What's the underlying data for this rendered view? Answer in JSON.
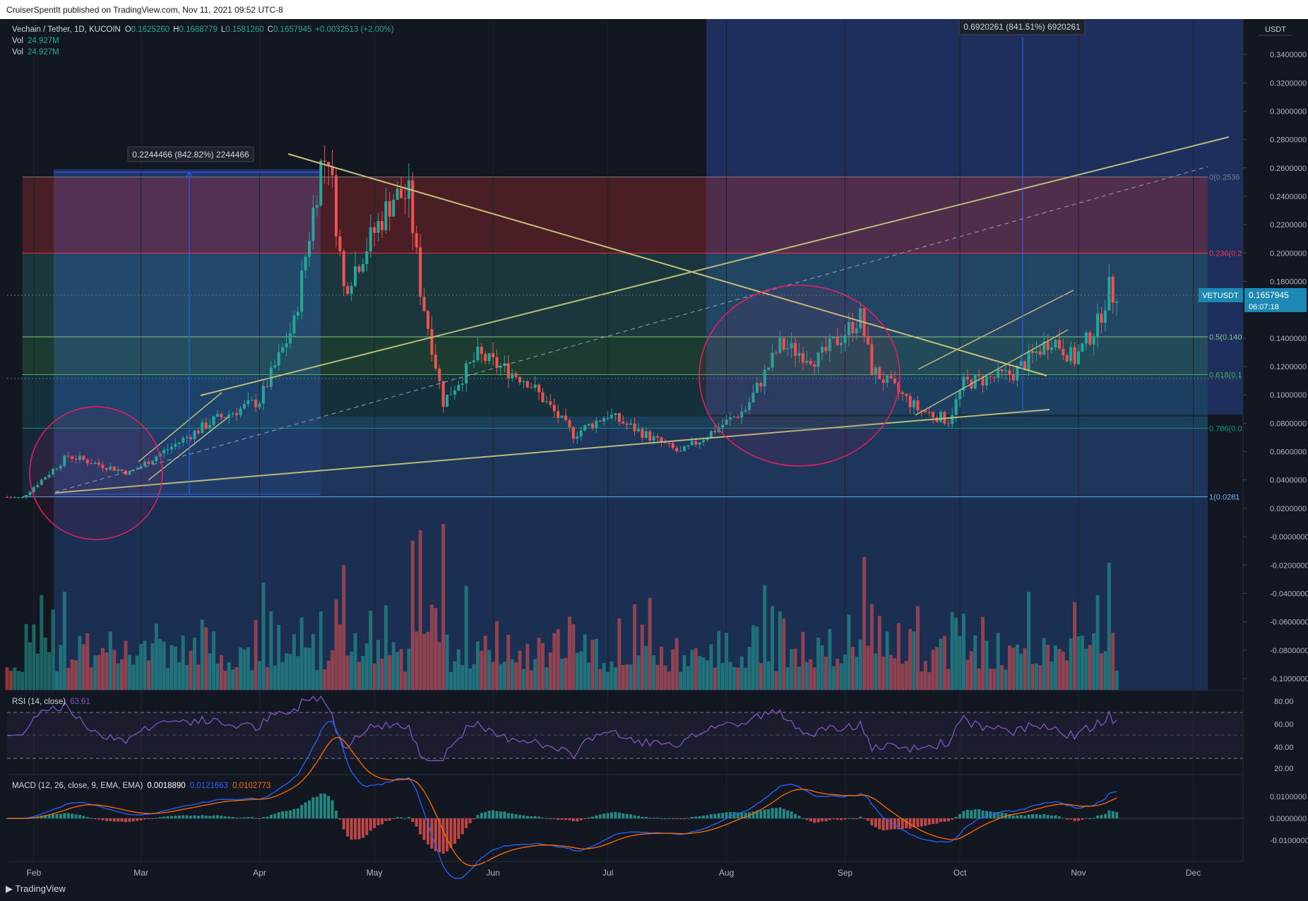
{
  "header": {
    "published_text": "CruiserSpentIt published on TradingView.com, Nov 11, 2021 09:52 UTC-8",
    "brand": "TradingView"
  },
  "legend": {
    "symbol": "Vechain / Tether, 1D, KUCOIN",
    "o_label": "O",
    "o_value": "0.1625260",
    "h_label": "H",
    "h_value": "0.1688779",
    "l_label": "L",
    "l_value": "0.1581260",
    "c_label": "C",
    "c_value": "0.1657945",
    "change": "+0.0032513 (+2.00%)",
    "vol_label": "Vol",
    "vol_value": "24.927M",
    "vol2_label": "Vol",
    "vol2_value": "24.927M"
  },
  "price_axis": {
    "currency": "USDT",
    "ticks": [
      "0.3400000",
      "0.3200000",
      "0.3000000",
      "0.2800000",
      "0.2600000",
      "0.2400000",
      "0.2200000",
      "0.2000000",
      "0.1800000",
      "0.1400000",
      "0.1200000",
      "0.1000000",
      "0.0800000",
      "0.0600000",
      "0.0400000",
      "0.0200000",
      "-0.0000000",
      "-0.0200000",
      "-0.0400000",
      "-0.0600000",
      "-0.0800000",
      "-0.1000000"
    ],
    "last_symbol": "VETUSDT",
    "last_price": "0.1657945",
    "countdown": "06:07:18"
  },
  "measurements": {
    "left": "0.2244466 (842.82%) 2244466",
    "right": "0.6920261 (841.51%) 6920261"
  },
  "fib_labels": [
    "0(0.2536",
    "0.236(0.2",
    "0.5(0.140",
    "0.618(0.1",
    "0.786(0.0",
    "1(0.0281"
  ],
  "time_axis": [
    "Feb",
    "Mar",
    "Apr",
    "May",
    "Jun",
    "Jul",
    "Aug",
    "Sep",
    "Oct",
    "Nov",
    "Dec"
  ],
  "rsi": {
    "label": "RSI (14, close)",
    "value": "63.61",
    "ticks": [
      "80.00",
      "60.00",
      "40.00",
      "20.00"
    ]
  },
  "macd": {
    "label": "MACD (12, 26, close, 9, EMA, EMA)",
    "hist_value": "0.0018890",
    "macd_value": "0.0121663",
    "signal_value": "0.0102773",
    "ticks": [
      "0.0100000",
      "0.0000000",
      "-0.0100000"
    ]
  },
  "colors": {
    "background": "#131722",
    "up": "#26a69a",
    "down": "#ef5350",
    "macd_line": "#2962ff",
    "signal_line": "#ff6d00",
    "rsi_line": "#7e57c2",
    "trendline": "#c6c07a",
    "circle": "#e91e63"
  },
  "chart_data": {
    "type": "candlestick",
    "symbol": "VETUSDT",
    "exchange": "KUCOIN",
    "interval": "1D",
    "x_range": [
      "2021-01-25",
      "2021-12-14"
    ],
    "price_range": [
      -0.105,
      0.35
    ],
    "key_points": [
      {
        "date": "2021-01-29",
        "close": 0.028
      },
      {
        "date": "2021-02-10",
        "close": 0.057
      },
      {
        "date": "2021-02-26",
        "close": 0.045
      },
      {
        "date": "2021-03-20",
        "close": 0.082
      },
      {
        "date": "2021-04-01",
        "close": 0.096
      },
      {
        "date": "2021-04-10",
        "close": 0.15
      },
      {
        "date": "2021-04-17",
        "close": 0.262
      },
      {
        "date": "2021-04-19",
        "close": 0.27
      },
      {
        "date": "2021-04-23",
        "close": 0.175
      },
      {
        "date": "2021-05-06",
        "close": 0.24
      },
      {
        "date": "2021-05-10",
        "close": 0.24
      },
      {
        "date": "2021-05-13",
        "close": 0.175
      },
      {
        "date": "2021-05-19",
        "close": 0.095
      },
      {
        "date": "2021-05-28",
        "close": 0.128
      },
      {
        "date": "2021-06-10",
        "close": 0.11
      },
      {
        "date": "2021-06-22",
        "close": 0.072
      },
      {
        "date": "2021-07-01",
        "close": 0.086
      },
      {
        "date": "2021-07-20",
        "close": 0.059
      },
      {
        "date": "2021-08-06",
        "close": 0.09
      },
      {
        "date": "2021-08-15",
        "close": 0.135
      },
      {
        "date": "2021-08-25",
        "close": 0.125
      },
      {
        "date": "2021-09-05",
        "close": 0.155
      },
      {
        "date": "2021-09-08",
        "close": 0.118
      },
      {
        "date": "2021-09-20",
        "close": 0.09
      },
      {
        "date": "2021-09-28",
        "close": 0.082
      },
      {
        "date": "2021-10-02",
        "close": 0.108
      },
      {
        "date": "2021-10-15",
        "close": 0.115
      },
      {
        "date": "2021-10-25",
        "close": 0.14
      },
      {
        "date": "2021-10-31",
        "close": 0.125
      },
      {
        "date": "2021-11-06",
        "close": 0.15
      },
      {
        "date": "2021-11-09",
        "close": 0.175
      },
      {
        "date": "2021-11-11",
        "close": 0.1657945
      }
    ],
    "fib_retracement": {
      "levels": [
        0,
        0.236,
        0.5,
        0.618,
        0.786,
        1
      ],
      "prices": [
        0.2536,
        0.2,
        0.1409,
        0.1143,
        0.0765,
        0.0281
      ]
    },
    "rsi": {
      "value": 63.61,
      "range": [
        20,
        85
      ],
      "bands": [
        70,
        30
      ]
    },
    "macd": {
      "macd": 0.0121663,
      "signal": 0.0102773,
      "histogram": 0.001889,
      "range": [
        -0.017,
        0.02
      ]
    }
  }
}
